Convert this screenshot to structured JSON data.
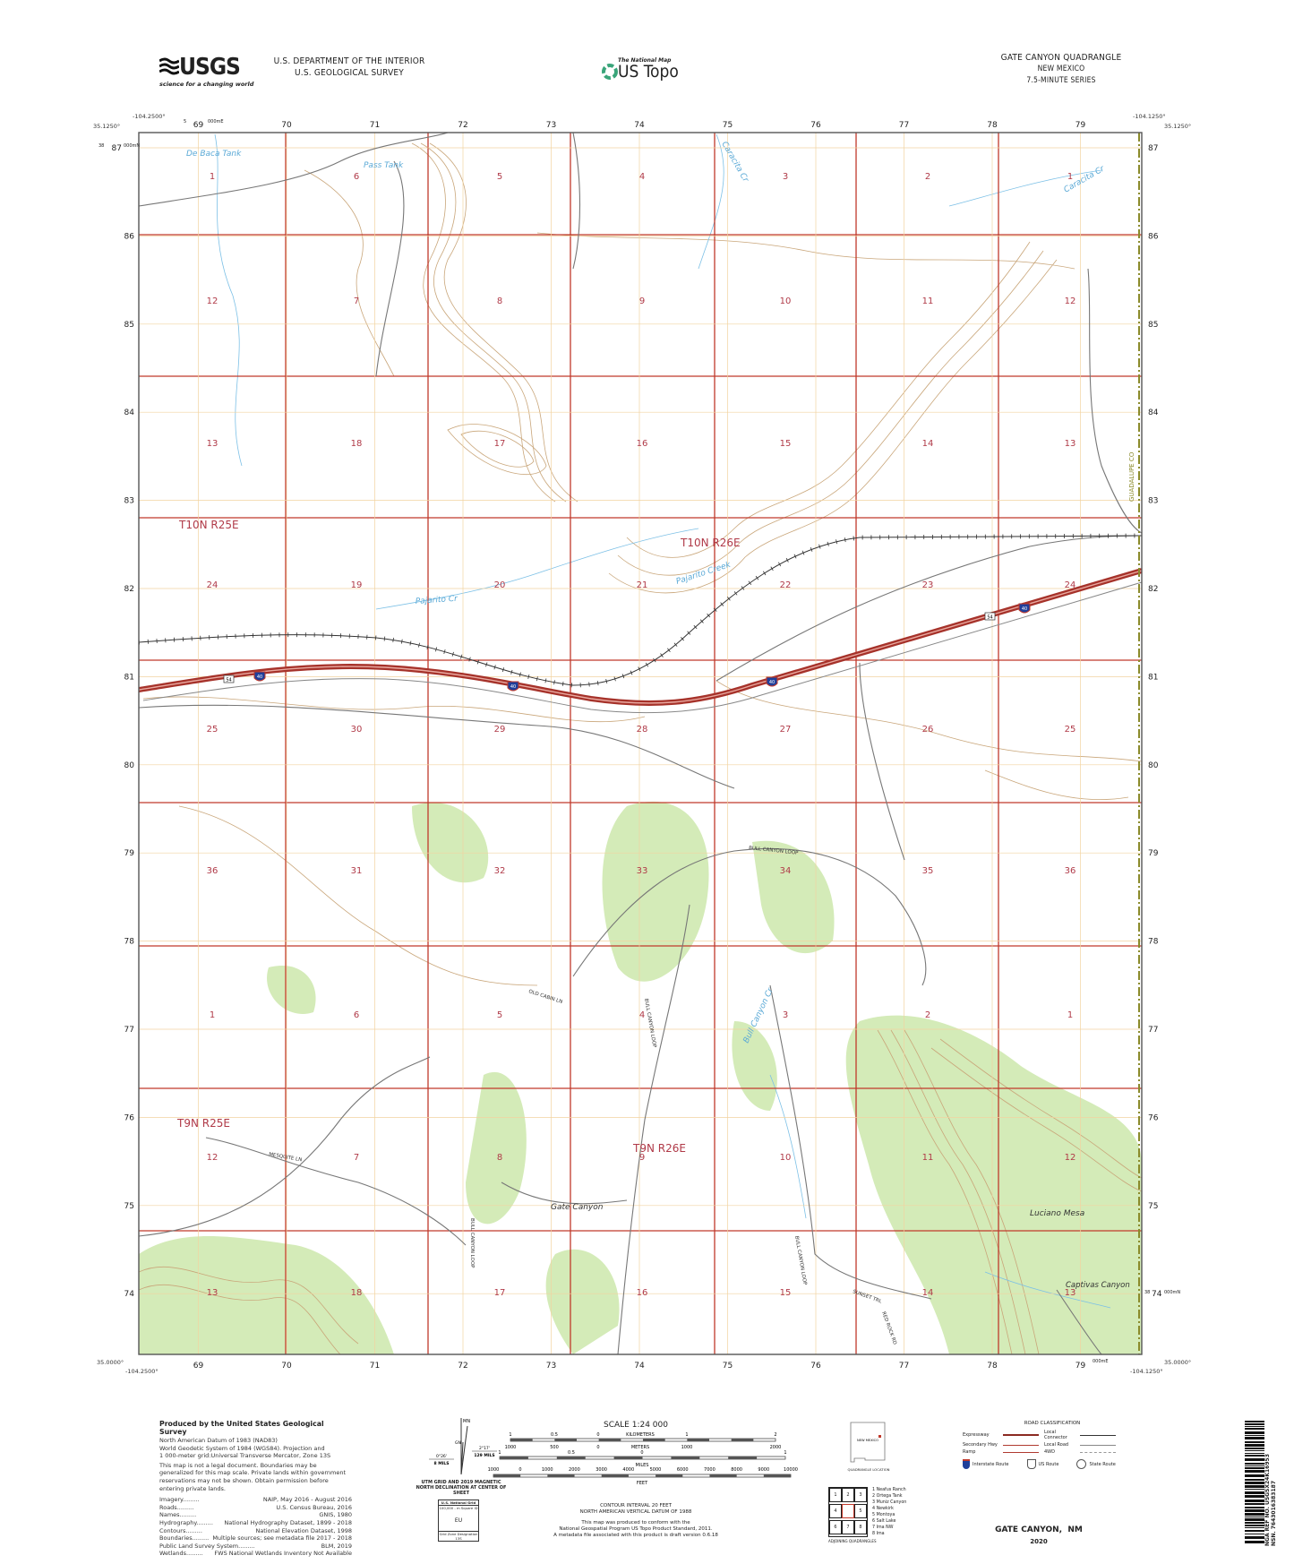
{
  "header": {
    "agency_logo": "USGS",
    "agency_tagline": "science for a changing world",
    "department": "U.S. DEPARTMENT OF THE INTERIOR",
    "survey": "U.S. GEOLOGICAL SURVEY",
    "product_small": "The National Map",
    "product": "US Topo",
    "quad_title": "GATE CANYON QUADRANGLE",
    "state": "NEW MEXICO",
    "series": "7.5-MINUTE SERIES"
  },
  "map": {
    "corners": {
      "top_left_lon": "-104.2500°",
      "top_left_lat": "35.1250°",
      "top_right_lon": "-104.1250°",
      "top_right_lat": "35.1250°",
      "bottom_left_lon": "-104.2500°",
      "bottom_left_lat": "35.0000°",
      "bottom_right_lon": "-104.1250°",
      "bottom_right_lat": "35.0000°"
    },
    "utm": {
      "top_easting_prefix": "5",
      "top_easting_suffix": "000mE",
      "bottom_easting_suffix": "000mE",
      "left_northing_prefix": "38",
      "left_northing_suffix": "000mN",
      "right_northing_prefix": "38",
      "right_northing_suffix": "000mN"
    },
    "eastings": [
      "69",
      "70",
      "71",
      "72",
      "73",
      "74",
      "75",
      "76",
      "77",
      "78",
      "79"
    ],
    "northings": [
      "87",
      "86",
      "85",
      "84",
      "83",
      "82",
      "81",
      "80",
      "79",
      "78",
      "77",
      "76",
      "75",
      "74"
    ],
    "sections": [
      [
        "1",
        "6",
        "5",
        "4",
        "3",
        "2",
        "1"
      ],
      [
        "12",
        "7",
        "8",
        "9",
        "10",
        "11",
        "12"
      ],
      [
        "13",
        "18",
        "17",
        "16",
        "15",
        "14",
        "13"
      ],
      [
        "24",
        "19",
        "20",
        "21",
        "22",
        "23",
        "24"
      ],
      [
        "25",
        "30",
        "29",
        "28",
        "27",
        "26",
        "25"
      ],
      [
        "36",
        "31",
        "32",
        "33",
        "34",
        "35",
        "36"
      ],
      [
        "1",
        "6",
        "5",
        "4",
        "3",
        "2",
        "1"
      ],
      [
        "12",
        "7",
        "8",
        "9",
        "10",
        "11",
        "12"
      ],
      [
        "13",
        "18",
        "17",
        "16",
        "15",
        "14",
        "13"
      ]
    ],
    "townships": {
      "t10n_r25e": "T10N R25E",
      "t10n_r26e": "T10N R26E",
      "t9n_r25e": "T9N R25E",
      "t9n_r26e": "T9N R26E"
    },
    "water_names": {
      "de_baca_tank": "De Baca Tank",
      "pass_tank": "Pass Tank",
      "caracita_cr_north": "Caracita Cr",
      "caracita_cr_east": "Caracita Cr",
      "pajarito_cr": "Pajarito Cr",
      "pajarito_creek": "Pajarito Creek",
      "bull_canyon_cr": "Bull Canyon Cr"
    },
    "place_names": {
      "gate_canyon": "Gate Canyon",
      "luciano_mesa": "Luciano Mesa",
      "captivas_canyon": "Captivas Canyon"
    },
    "road_names": {
      "bull_canyon_loop": "BULL CANYON LOOP",
      "old_cabin_ln": "OLD CABIN LN",
      "mesquite_ln": "MESQUITE LN",
      "sunset_trl": "SUNSET TRL",
      "red_rock_rd": "RED ROCK RD"
    },
    "county": "GUADALUPE CO",
    "interstate_shield": "40",
    "us_shield": "54",
    "colors": {
      "section_line": "#c0392b",
      "grid": "#f0c98a",
      "contour": "#b08a5a",
      "water": "#6fb6e0",
      "vegetation": "#cfe8b0",
      "interstate": "#a6322a",
      "road": "#6b6b6b"
    }
  },
  "footer": {
    "producer_title": "Produced by the United States Geological Survey",
    "datum_lines": [
      "North American Datum of 1983 (NAD83)",
      "World Geodetic System of 1984 (WGS84).  Projection and",
      "1 000-meter grid:Universal Transverse Mercator, Zone 13S"
    ],
    "disclaimer": "This map is not a legal document. Boundaries may be generalized for this map scale. Private lands within government reservations may not be shown. Obtain permission before entering private lands.",
    "credits": [
      {
        "label": "Imagery",
        "source": "NAIP, May 2016 - August 2016"
      },
      {
        "label": "Roads",
        "source": "U.S. Census Bureau, 2016"
      },
      {
        "label": "Names",
        "source": "GNIS, 1980"
      },
      {
        "label": "Hydrography",
        "source": "National Hydrography Dataset, 1899 - 2018"
      },
      {
        "label": "Contours",
        "source": "National Elevation Dataset, 1998"
      },
      {
        "label": "Boundaries",
        "source": "Multiple sources; see metadata file 2017 - 2018"
      },
      {
        "label": "Public Land Survey System",
        "source": "BLM, 2019"
      },
      {
        "label": "Wetlands",
        "source": "FWS National Wetlands Inventory Not Available"
      }
    ],
    "declination": {
      "mn": "MN",
      "gn": "GN",
      "mag_angle": "2°17'",
      "mag_mils": "129 MILS",
      "grid_angle": "0°26'",
      "grid_mils": "8 MILS",
      "caption": "UTM GRID AND 2019 MAGNETIC NORTH DECLINATION AT CENTER OF SHEET"
    },
    "usng": {
      "title": "U.S. National Grid",
      "square_label": "100,000 - m Square ID",
      "square_id": "EU",
      "zone_label": "Grid Zone Designation",
      "zone": "13S"
    },
    "scale": {
      "title": "SCALE 1:24 000",
      "km_ticks": [
        "1",
        "0.5",
        "0",
        "1",
        "2"
      ],
      "km_label": "KILOMETERS",
      "m_ticks": [
        "1000",
        "500",
        "0",
        "1000",
        "2000"
      ],
      "m_label": "METERS",
      "mi_ticks": [
        "1",
        "0.5",
        "0",
        "1"
      ],
      "mi_label": "MILES",
      "ft_ticks": [
        "1000",
        "0",
        "1000",
        "2000",
        "3000",
        "4000",
        "5000",
        "6000",
        "7000",
        "8000",
        "9000",
        "10000"
      ],
      "ft_label": "FEET"
    },
    "contour_interval": "CONTOUR INTERVAL 20 FEET",
    "vertical_datum": "NORTH AMERICAN VERTICAL DATUM OF 1988",
    "conform_lines": [
      "This map was produced to conform with the",
      "National Geospatial Program US Topo Product Standard, 2011.",
      "A metadata file associated with this product is draft version 0.6.18"
    ],
    "location": {
      "state": "NEW MEXICO",
      "caption": "QUADRANGLE LOCATION"
    },
    "adjoining": {
      "cells": [
        "1",
        "2",
        "3",
        "4",
        "",
        "5",
        "6",
        "7",
        "8"
      ],
      "names": [
        "1 Neafus Ranch",
        "2 Ortega Tank",
        "3 Muniz Canyon",
        "4 Newkirk",
        "5 Montoya",
        "6 Salt Lake",
        "7 Ima NW",
        "8 Ima"
      ],
      "caption": "ADJOINING QUADRANGLES"
    },
    "roads": {
      "title": "ROAD CLASSIFICATION",
      "expressway": "Expressway",
      "secondary": "Secondary Hwy",
      "ramp": "Ramp",
      "local_connector": "Local Connector",
      "local_road": "Local Road",
      "fourwd": "4WD",
      "interstate": "Interstate Route",
      "us": "US Route",
      "state": "State Route"
    },
    "sheet_name": "GATE CANYON,  NM",
    "year": "2020",
    "barcode_nsn": "NSN. 7643016383187",
    "barcode_nga": "NGA REF NO. USGSX24K16953"
  }
}
